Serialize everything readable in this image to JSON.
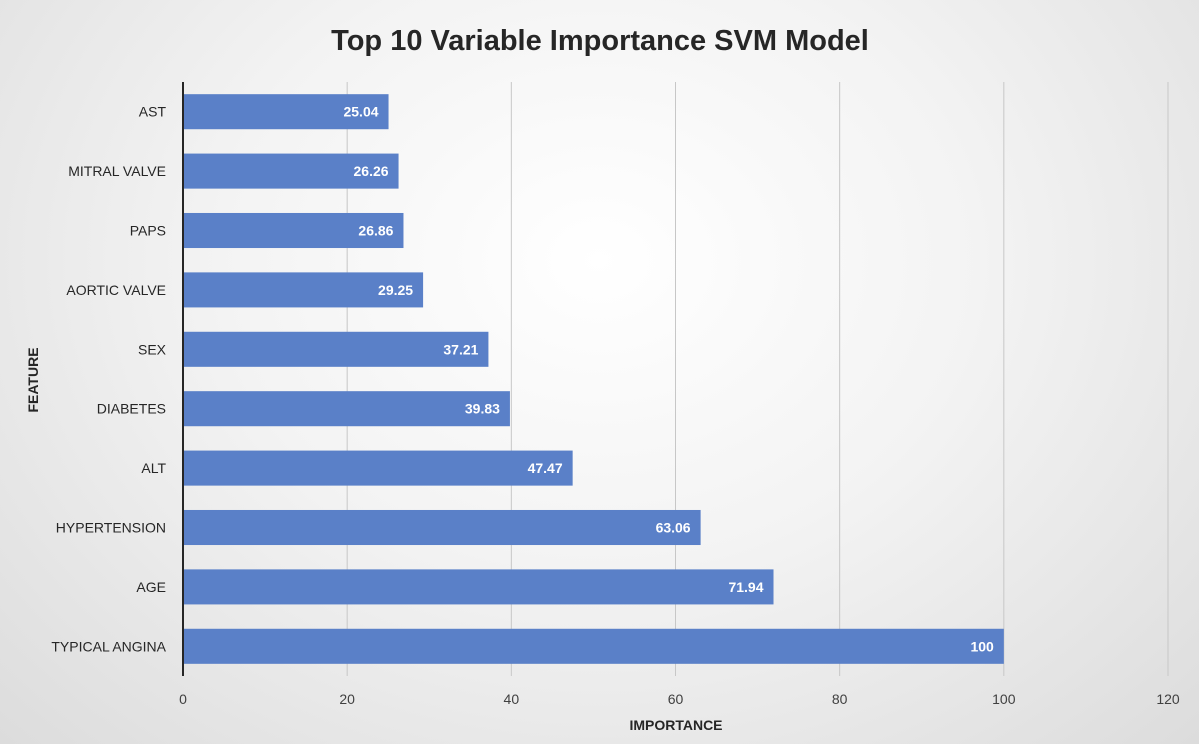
{
  "chart_data": {
    "type": "bar",
    "orientation": "horizontal",
    "title": "Top 10 Variable Importance SVM Model",
    "xlabel": "IMPORTANCE",
    "ylabel": "FEATURE",
    "categories": [
      "AST",
      "MITRAL VALVE",
      "PAPS",
      "AORTIC VALVE",
      "SEX",
      "DIABETES",
      "ALT",
      "HYPERTENSION",
      "AGE",
      "TYPICAL ANGINA"
    ],
    "values": [
      25.04,
      26.26,
      26.86,
      29.25,
      37.21,
      39.83,
      47.47,
      63.06,
      71.94,
      100
    ],
    "value_labels": [
      "25.04",
      "26.26",
      "26.86",
      "29.25",
      "37.21",
      "39.83",
      "47.47",
      "63.06",
      "71.94",
      "100"
    ],
    "xlim": [
      0,
      120
    ],
    "xticks": [
      0,
      20,
      40,
      60,
      80,
      100,
      120
    ],
    "xtick_labels": [
      "0",
      "20",
      "40",
      "60",
      "80",
      "100",
      "120"
    ],
    "grid": "vertical",
    "bar_color": "#5a80c8"
  }
}
